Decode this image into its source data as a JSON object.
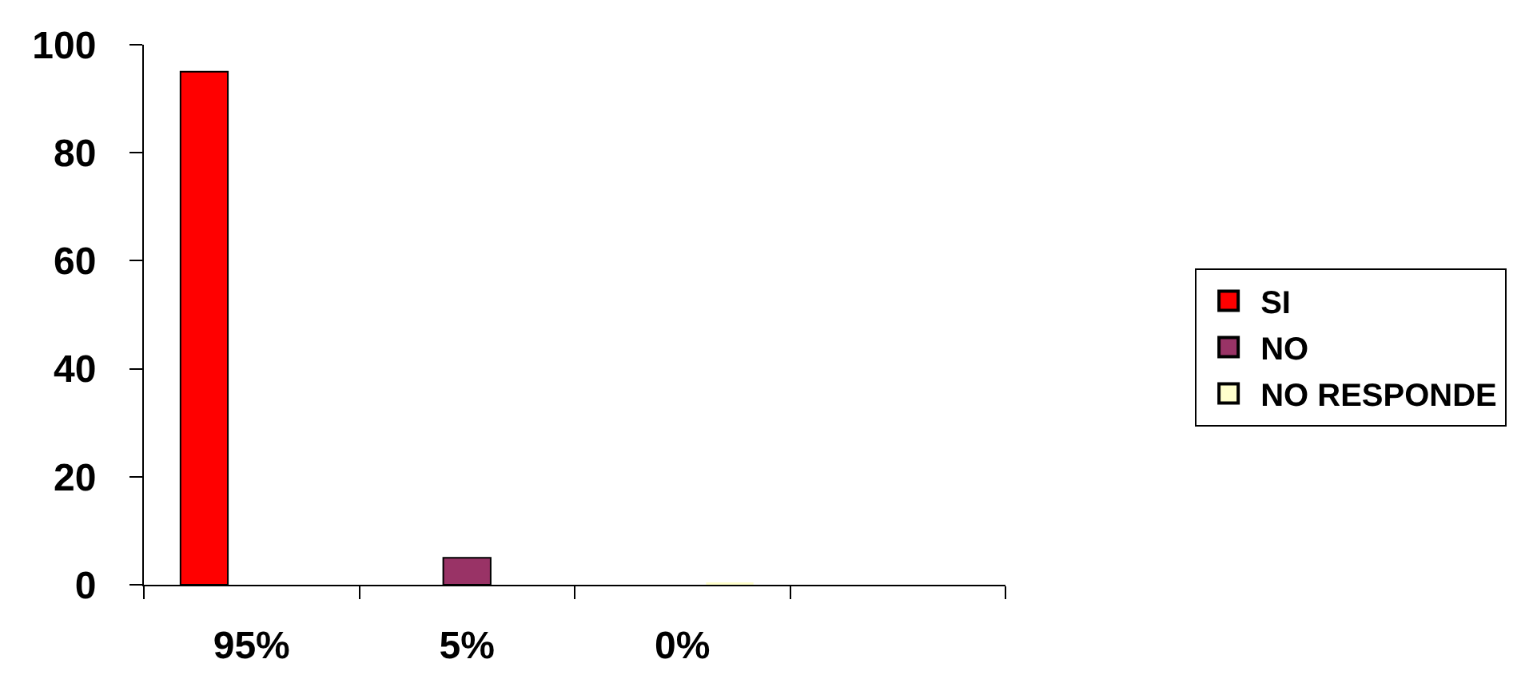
{
  "chart_data": {
    "type": "bar",
    "categories": [
      "95%",
      "5%",
      "0%",
      null
    ],
    "series": [
      {
        "name": "SI",
        "color": "#ff0000",
        "values": [
          95,
          null,
          null,
          null
        ]
      },
      {
        "name": "NO",
        "color": "#993366",
        "values": [
          null,
          5,
          null,
          null
        ]
      },
      {
        "name": "NO RESPONDE",
        "color": "#ffffcc",
        "values": [
          null,
          null,
          0,
          null
        ]
      }
    ],
    "ylim": [
      0,
      100
    ],
    "yticks": [
      0,
      20,
      40,
      60,
      80,
      100
    ],
    "grid": false,
    "legend": "right"
  }
}
